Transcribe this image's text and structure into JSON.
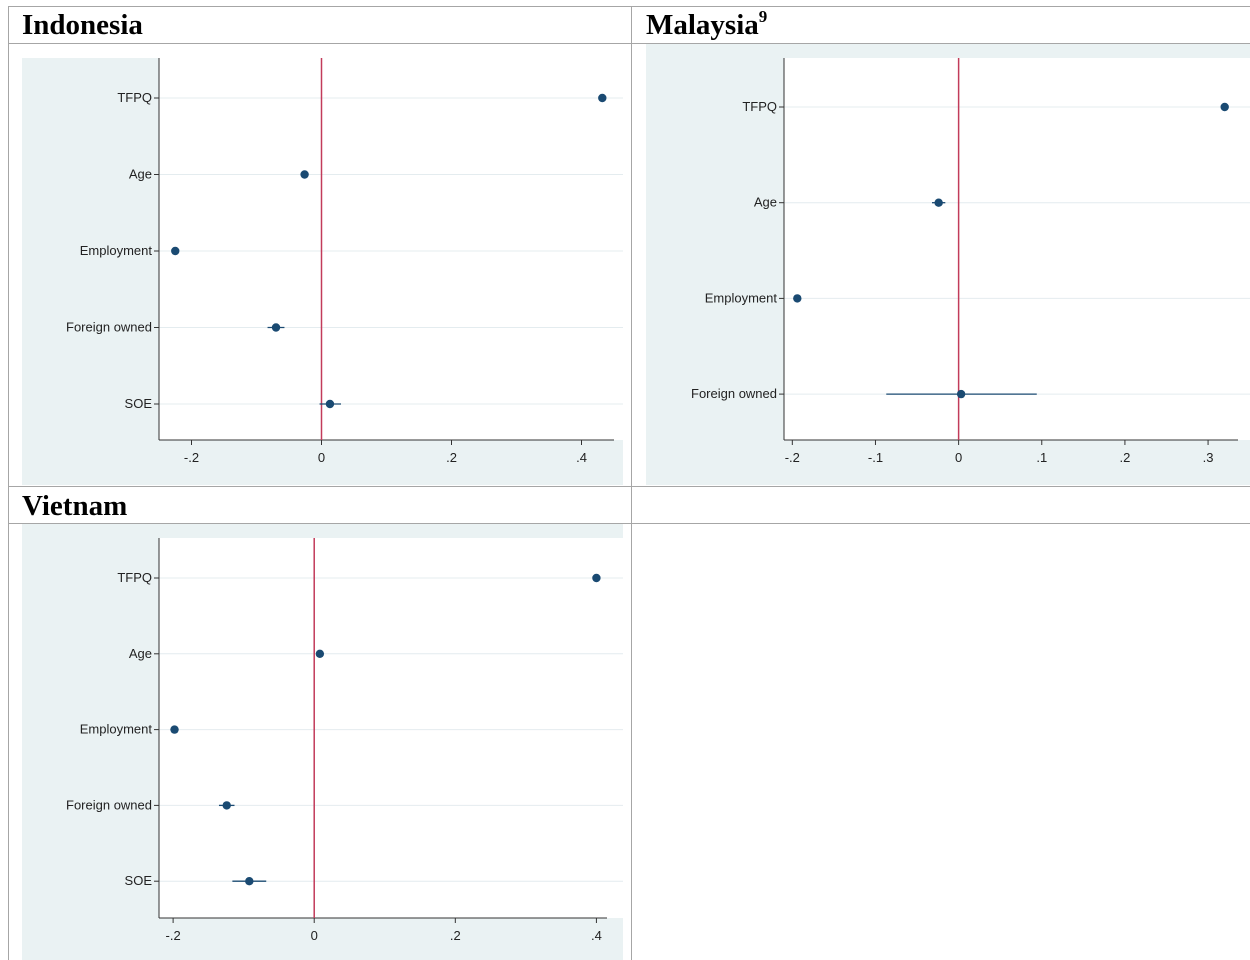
{
  "headers": {
    "indonesia": "Indonesia",
    "malaysia": "Malaysia",
    "malaysia_footnote": "9",
    "vietnam": "Vietnam"
  },
  "colors": {
    "background": "#eaf2f3",
    "plot_area": "#ffffff",
    "marker": "#1a4a72",
    "zero_line": "#c23b5a",
    "gridline": "#e4ecef"
  },
  "chart_data": [
    {
      "type": "scatter",
      "title": "Indonesia",
      "categories": [
        "TFPQ",
        "Age",
        "Employment",
        "Foreign owned",
        "SOE"
      ],
      "estimates": [
        0.432,
        -0.026,
        -0.225,
        -0.07,
        0.013
      ],
      "ci_low": [
        0.429,
        -0.032,
        -0.23,
        -0.083,
        -0.003
      ],
      "ci_high": [
        0.435,
        -0.02,
        -0.22,
        -0.057,
        0.03
      ],
      "xticks": [
        -0.2,
        0,
        0.2,
        0.4
      ],
      "xtick_labels": [
        "-.2",
        "0",
        ".2",
        ".4"
      ],
      "xlim": [
        -0.25,
        0.45
      ],
      "reference_line": 0,
      "grid": true
    },
    {
      "type": "scatter",
      "title": "Malaysia",
      "categories": [
        "TFPQ",
        "Age",
        "Employment",
        "Foreign owned"
      ],
      "estimates": [
        0.32,
        -0.024,
        -0.194,
        0.003
      ],
      "ci_low": [
        0.318,
        -0.032,
        -0.197,
        -0.087
      ],
      "ci_high": [
        0.322,
        -0.016,
        -0.191,
        0.094
      ],
      "xticks": [
        -0.2,
        -0.1,
        0,
        0.1,
        0.2,
        0.3
      ],
      "xtick_labels": [
        "-.2",
        "-.1",
        "0",
        ".1",
        ".2",
        ".3"
      ],
      "xlim": [
        -0.21,
        0.336
      ],
      "reference_line": 0,
      "grid": true
    },
    {
      "type": "scatter",
      "title": "Vietnam",
      "categories": [
        "TFPQ",
        "Age",
        "Employment",
        "Foreign owned",
        "SOE"
      ],
      "estimates": [
        0.4,
        0.008,
        -0.198,
        -0.124,
        -0.092
      ],
      "ci_low": [
        0.398,
        0.004,
        -0.2,
        -0.135,
        -0.116
      ],
      "ci_high": [
        0.402,
        0.012,
        -0.196,
        -0.113,
        -0.068
      ],
      "xticks": [
        -0.2,
        0,
        0.2,
        0.4
      ],
      "xtick_labels": [
        "-.2",
        "0",
        ".2",
        ".4"
      ],
      "xlim": [
        -0.22,
        0.415
      ],
      "reference_line": 0,
      "grid": true
    }
  ]
}
